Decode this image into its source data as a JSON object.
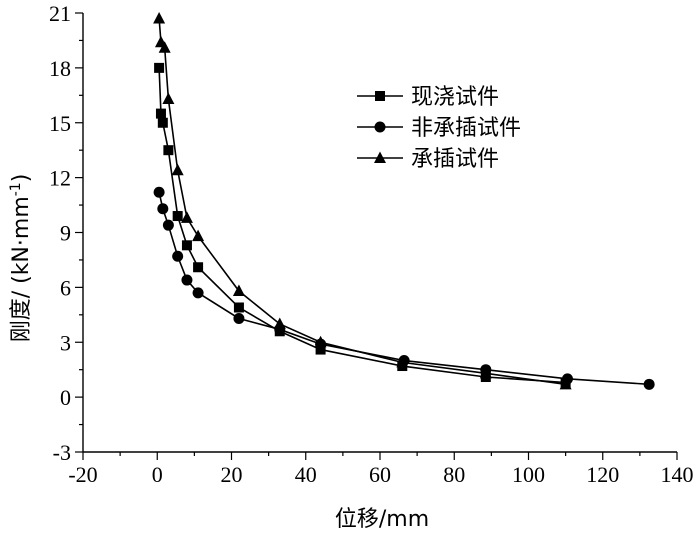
{
  "chart_data": {
    "type": "line",
    "xlabel": "位移/mm",
    "ylabel_main": "刚度/ (kN·mm",
    "ylabel_sup": "-1",
    "ylabel_close": ")",
    "xlim": [
      -20,
      140
    ],
    "ylim": [
      -3,
      21
    ],
    "xticks": [
      -20,
      0,
      20,
      40,
      60,
      80,
      100,
      120,
      140
    ],
    "yticks": [
      -3,
      0,
      3,
      6,
      9,
      12,
      15,
      18,
      21
    ],
    "legend_position": "upper-right",
    "series": [
      {
        "name": "现浇试件",
        "marker": "square",
        "x": [
          0.5,
          1.0,
          1.5,
          3.0,
          5.5,
          8.0,
          11.0,
          22.0,
          33.0,
          44.0,
          66.0,
          88.5,
          110.0
        ],
        "y": [
          18.0,
          15.5,
          15.0,
          13.5,
          9.9,
          8.3,
          7.1,
          4.9,
          3.6,
          2.6,
          1.7,
          1.1,
          0.8
        ]
      },
      {
        "name": "非承插试件",
        "marker": "circle",
        "x": [
          0.5,
          1.5,
          3.0,
          5.5,
          8.0,
          11.0,
          22.0,
          33.0,
          44.0,
          66.5,
          88.5,
          110.5,
          132.5
        ],
        "y": [
          11.2,
          10.3,
          9.4,
          7.7,
          6.4,
          5.7,
          4.3,
          3.7,
          2.9,
          2.0,
          1.5,
          1.0,
          0.7
        ]
      },
      {
        "name": "承插试件",
        "marker": "triangle",
        "x": [
          0.5,
          1.0,
          2.0,
          3.0,
          5.5,
          8.0,
          11.0,
          22.0,
          33.0,
          44.0,
          66.0,
          88.5,
          110.0
        ],
        "y": [
          20.7,
          19.4,
          19.1,
          16.3,
          12.4,
          9.8,
          8.8,
          5.8,
          4.0,
          3.0,
          1.9,
          1.3,
          0.7
        ]
      }
    ]
  }
}
